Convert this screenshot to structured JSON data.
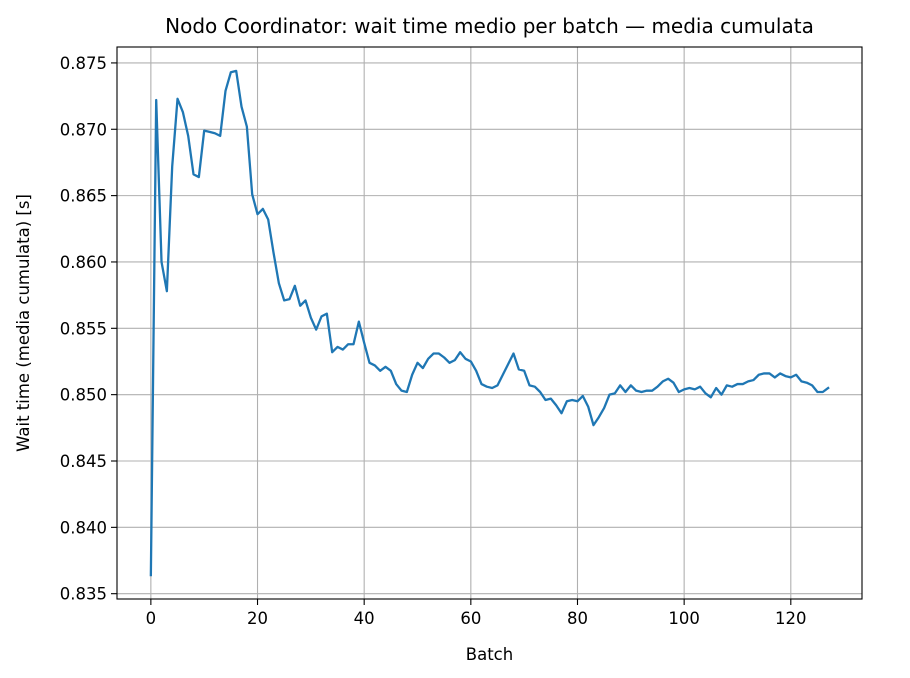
{
  "chart_data": {
    "type": "line",
    "title": "Nodo Coordinator: wait time medio per batch — media cumulata",
    "xlabel": "Batch",
    "ylabel": "Wait time (media cumulata) [s]",
    "xlim": [
      -6.35,
      133.35
    ],
    "ylim": [
      0.8346,
      0.8762
    ],
    "xticks": [
      0,
      20,
      40,
      60,
      80,
      100,
      120
    ],
    "xtick_labels": [
      "0",
      "20",
      "40",
      "60",
      "80",
      "100",
      "120"
    ],
    "yticks": [
      0.835,
      0.84,
      0.845,
      0.85,
      0.855,
      0.86,
      0.865,
      0.87,
      0.875
    ],
    "ytick_labels": [
      "0.835",
      "0.840",
      "0.845",
      "0.850",
      "0.855",
      "0.860",
      "0.865",
      "0.870",
      "0.875"
    ],
    "grid": true,
    "series": [
      {
        "color": "#1f77b4",
        "x": [
          0,
          1,
          2,
          3,
          4,
          5,
          6,
          7,
          8,
          9,
          10,
          11,
          12,
          13,
          14,
          15,
          16,
          17,
          18,
          19,
          20,
          21,
          22,
          23,
          24,
          25,
          26,
          27,
          28,
          29,
          30,
          31,
          32,
          33,
          34,
          35,
          36,
          37,
          38,
          39,
          40,
          41,
          42,
          43,
          44,
          45,
          46,
          47,
          48,
          49,
          50,
          51,
          52,
          53,
          54,
          55,
          56,
          57,
          58,
          59,
          60,
          61,
          62,
          63,
          64,
          65,
          66,
          67,
          68,
          69,
          70,
          71,
          72,
          73,
          74,
          75,
          76,
          77,
          78,
          79,
          80,
          81,
          82,
          83,
          84,
          85,
          86,
          87,
          88,
          89,
          90,
          91,
          92,
          93,
          94,
          95,
          96,
          97,
          98,
          99,
          100,
          101,
          102,
          103,
          104,
          105,
          106,
          107,
          108,
          109,
          110,
          111,
          112,
          113,
          114,
          115,
          116,
          117,
          118,
          119,
          120,
          121,
          122,
          123,
          124,
          125,
          126,
          127
        ],
        "y": [
          0.8364,
          0.8722,
          0.86,
          0.8578,
          0.8672,
          0.8723,
          0.8713,
          0.8695,
          0.8666,
          0.8664,
          0.8699,
          0.8698,
          0.8697,
          0.8695,
          0.8729,
          0.8743,
          0.8744,
          0.8717,
          0.8702,
          0.8651,
          0.8636,
          0.864,
          0.8632,
          0.8607,
          0.8584,
          0.8571,
          0.8572,
          0.8582,
          0.8567,
          0.8571,
          0.8558,
          0.8549,
          0.8559,
          0.8561,
          0.8532,
          0.8536,
          0.8534,
          0.8538,
          0.8538,
          0.8555,
          0.8539,
          0.8524,
          0.8522,
          0.8518,
          0.8521,
          0.8518,
          0.8508,
          0.8503,
          0.8502,
          0.8515,
          0.8524,
          0.852,
          0.8527,
          0.8531,
          0.8531,
          0.8528,
          0.8524,
          0.8526,
          0.8532,
          0.8527,
          0.8525,
          0.8518,
          0.8508,
          0.8506,
          0.8505,
          0.8507,
          0.8515,
          0.8523,
          0.8531,
          0.8519,
          0.8518,
          0.8507,
          0.8506,
          0.8502,
          0.8496,
          0.8497,
          0.8492,
          0.8486,
          0.8495,
          0.8496,
          0.8495,
          0.8499,
          0.8491,
          0.8477,
          0.8483,
          0.849,
          0.85,
          0.8501,
          0.8507,
          0.8502,
          0.8507,
          0.8503,
          0.8502,
          0.8503,
          0.8503,
          0.8506,
          0.851,
          0.8512,
          0.8509,
          0.8502,
          0.8504,
          0.8505,
          0.8504,
          0.8506,
          0.8501,
          0.8498,
          0.8505,
          0.85,
          0.8507,
          0.8506,
          0.8508,
          0.8508,
          0.851,
          0.8511,
          0.8515,
          0.8516,
          0.8516,
          0.8513,
          0.8516,
          0.8514,
          0.8513,
          0.8515,
          0.851,
          0.8509,
          0.8507,
          0.8502,
          0.8502,
          0.8505
        ]
      }
    ]
  }
}
